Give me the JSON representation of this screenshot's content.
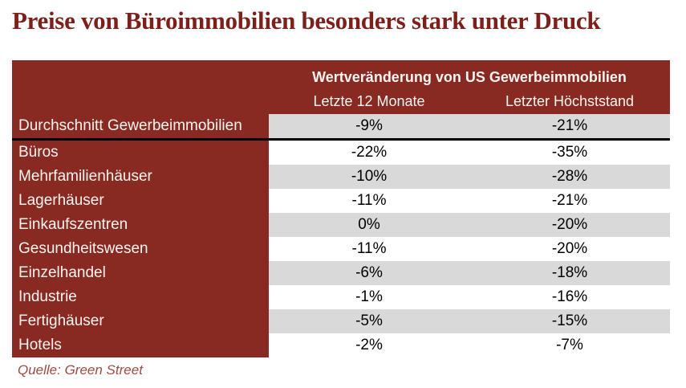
{
  "title": "Preise von Büroimmobilien besonders stark unter Druck",
  "source": "Quelle: Green Street",
  "colors": {
    "brand_red": "#882A21",
    "title_red": "#7D201B",
    "stripe_gray": "#D9D9D9",
    "separator_black": "#000000",
    "source_red": "#9E4A42"
  },
  "table": {
    "header_title": "Wertveränderung von US Gewerbeimmobilien",
    "columns": [
      "Letzte 12 Monate",
      "Letzter Höchststand"
    ]
  },
  "chart_data": {
    "type": "table",
    "title": "Wertveränderung von US Gewerbeimmobilien",
    "columns": [
      "Letzte 12 Monate",
      "Letzter Höchststand"
    ],
    "rows": [
      {
        "label": "Durchschnitt Gewerbeimmobilien",
        "values": [
          "-9%",
          "-21%"
        ]
      },
      {
        "label": "Büros",
        "values": [
          "-22%",
          "-35%"
        ]
      },
      {
        "label": "Mehrfamilienhäuser",
        "values": [
          "-10%",
          "-28%"
        ]
      },
      {
        "label": "Lagerhäuser",
        "values": [
          "-11%",
          "-21%"
        ]
      },
      {
        "label": "Einkaufszentren",
        "values": [
          "0%",
          "-20%"
        ]
      },
      {
        "label": "Gesundheitswesen",
        "values": [
          "-11%",
          "-20%"
        ]
      },
      {
        "label": "Einzelhandel",
        "values": [
          "-6%",
          "-18%"
        ]
      },
      {
        "label": "Industrie",
        "values": [
          "-1%",
          "-16%"
        ]
      },
      {
        "label": "Fertighäuser",
        "values": [
          "-5%",
          "-15%"
        ]
      },
      {
        "label": "Hotels",
        "values": [
          "-2%",
          "-7%"
        ]
      }
    ],
    "layout": {
      "striped_rows": "first row and every second row have gray value cells",
      "separator_after_row": 0,
      "label_column_background": "dark red",
      "values_alignment": "center"
    }
  }
}
